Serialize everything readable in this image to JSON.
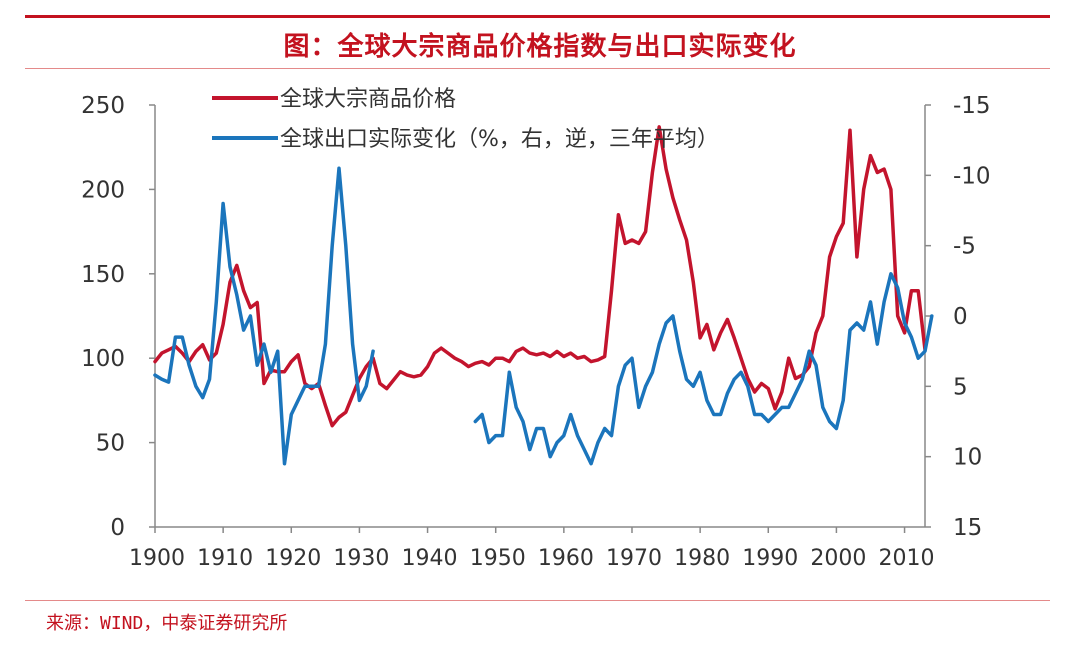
{
  "header": {
    "title": "图：全球大宗商品价格指数与出口实际变化"
  },
  "footer": {
    "source": "来源：WIND，中泰证券研究所"
  },
  "chart_data": {
    "type": "line",
    "x_ticks": [
      1900,
      1910,
      1920,
      1930,
      1940,
      1950,
      1960,
      1970,
      1980,
      1990,
      2000,
      2010
    ],
    "xlim": [
      1900,
      2013
    ],
    "left_axis": {
      "ylim": [
        0,
        250
      ],
      "ticks": [
        0,
        50,
        100,
        150,
        200,
        250
      ]
    },
    "right_axis": {
      "ylim": [
        15,
        -15
      ],
      "ticks": [
        15,
        10,
        5,
        0,
        -5,
        -10,
        -15
      ],
      "reversed": true
    },
    "legend": {
      "placement": "top-left",
      "items": [
        "全球大宗商品价格",
        "全球出口实际变化（%，右，逆，三年平均）"
      ]
    },
    "colors": {
      "commodity": "#c3142d",
      "exports": "#1b75bc",
      "axis": "#888888",
      "rule": "#c3121f"
    },
    "series": [
      {
        "name": "全球大宗商品价格",
        "axis": "left",
        "color": "#c3142d",
        "points": [
          [
            1900,
            98
          ],
          [
            1901,
            103
          ],
          [
            1902,
            105
          ],
          [
            1903,
            107
          ],
          [
            1904,
            103
          ],
          [
            1905,
            98
          ],
          [
            1906,
            104
          ],
          [
            1907,
            108
          ],
          [
            1908,
            99
          ],
          [
            1909,
            103
          ],
          [
            1910,
            120
          ],
          [
            1911,
            145
          ],
          [
            1912,
            155
          ],
          [
            1913,
            140
          ],
          [
            1914,
            130
          ],
          [
            1915,
            133
          ],
          [
            1916,
            85
          ],
          [
            1917,
            93
          ],
          [
            1918,
            92
          ],
          [
            1919,
            92
          ],
          [
            1920,
            98
          ],
          [
            1921,
            102
          ],
          [
            1922,
            85
          ],
          [
            1923,
            82
          ],
          [
            1924,
            85
          ],
          [
            1925,
            72
          ],
          [
            1926,
            60
          ],
          [
            1927,
            65
          ],
          [
            1928,
            68
          ],
          [
            1929,
            78
          ],
          [
            1930,
            88
          ],
          [
            1931,
            95
          ],
          [
            1932,
            100
          ],
          [
            1933,
            85
          ],
          [
            1934,
            82
          ],
          [
            1935,
            87
          ],
          [
            1936,
            92
          ],
          [
            1937,
            90
          ],
          [
            1938,
            89
          ],
          [
            1939,
            90
          ],
          [
            1940,
            95
          ],
          [
            1941,
            103
          ],
          [
            1942,
            106
          ],
          [
            1943,
            103
          ],
          [
            1944,
            100
          ],
          [
            1945,
            98
          ],
          [
            1946,
            95
          ],
          [
            1947,
            97
          ],
          [
            1948,
            98
          ],
          [
            1949,
            96
          ],
          [
            1950,
            100
          ],
          [
            1951,
            100
          ],
          [
            1952,
            98
          ],
          [
            1953,
            104
          ],
          [
            1954,
            106
          ],
          [
            1955,
            103
          ],
          [
            1956,
            102
          ],
          [
            1957,
            103
          ],
          [
            1958,
            101
          ],
          [
            1959,
            104
          ],
          [
            1960,
            101
          ],
          [
            1961,
            103
          ],
          [
            1962,
            100
          ],
          [
            1963,
            101
          ],
          [
            1964,
            98
          ],
          [
            1965,
            99
          ],
          [
            1966,
            101
          ],
          [
            1967,
            140
          ],
          [
            1968,
            185
          ],
          [
            1969,
            168
          ],
          [
            1970,
            170
          ],
          [
            1971,
            168
          ],
          [
            1972,
            175
          ],
          [
            1973,
            210
          ],
          [
            1974,
            237
          ],
          [
            1975,
            212
          ],
          [
            1976,
            195
          ],
          [
            1977,
            182
          ],
          [
            1978,
            170
          ],
          [
            1979,
            145
          ],
          [
            1980,
            112
          ],
          [
            1981,
            120
          ],
          [
            1982,
            105
          ],
          [
            1983,
            115
          ],
          [
            1984,
            123
          ],
          [
            1985,
            112
          ],
          [
            1986,
            100
          ],
          [
            1987,
            88
          ],
          [
            1988,
            80
          ],
          [
            1989,
            85
          ],
          [
            1990,
            82
          ],
          [
            1991,
            70
          ],
          [
            1992,
            80
          ],
          [
            1993,
            100
          ],
          [
            1994,
            88
          ],
          [
            1995,
            90
          ],
          [
            1996,
            95
          ],
          [
            1997,
            115
          ],
          [
            1998,
            125
          ],
          [
            1999,
            160
          ],
          [
            2000,
            172
          ],
          [
            2001,
            180
          ],
          [
            2002,
            235
          ],
          [
            2003,
            160
          ],
          [
            2004,
            200
          ],
          [
            2005,
            220
          ],
          [
            2006,
            210
          ],
          [
            2007,
            212
          ],
          [
            2008,
            200
          ],
          [
            2009,
            125
          ],
          [
            2010,
            115
          ],
          [
            2011,
            140
          ],
          [
            2012,
            140
          ],
          [
            2013,
            105
          ]
        ]
      },
      {
        "name": "全球出口实际变化（%，右，逆，三年平均）",
        "axis": "right",
        "color": "#1b75bc",
        "segments": [
          [
            [
              1900,
              4.2
            ],
            [
              1901,
              4.5
            ],
            [
              1902,
              4.7
            ],
            [
              1903,
              1.5
            ],
            [
              1904,
              1.5
            ],
            [
              1905,
              3.5
            ],
            [
              1906,
              5.0
            ],
            [
              1907,
              5.8
            ],
            [
              1908,
              4.5
            ],
            [
              1909,
              -1.0
            ],
            [
              1910,
              -8.0
            ],
            [
              1911,
              -3.5
            ],
            [
              1912,
              -1.5
            ],
            [
              1913,
              1.0
            ],
            [
              1914,
              0.0
            ],
            [
              1915,
              3.5
            ],
            [
              1916,
              2.0
            ],
            [
              1917,
              4.0
            ],
            [
              1918,
              2.5
            ],
            [
              1919,
              10.5
            ],
            [
              1920,
              7.0
            ],
            [
              1921,
              6.0
            ],
            [
              1922,
              5.0
            ],
            [
              1923,
              5.0
            ],
            [
              1924,
              5.0
            ],
            [
              1925,
              2.0
            ],
            [
              1926,
              -5.0
            ],
            [
              1927,
              -10.5
            ],
            [
              1928,
              -5.0
            ],
            [
              1929,
              2.0
            ],
            [
              1930,
              6.0
            ],
            [
              1931,
              5.0
            ],
            [
              1932,
              2.5
            ]
          ],
          [
            [
              1947,
              7.5
            ],
            [
              1948,
              7.0
            ],
            [
              1949,
              9.0
            ],
            [
              1950,
              8.5
            ],
            [
              1951,
              8.5
            ],
            [
              1952,
              4.0
            ],
            [
              1953,
              6.5
            ],
            [
              1954,
              7.5
            ],
            [
              1955,
              9.5
            ],
            [
              1956,
              8.0
            ],
            [
              1957,
              8.0
            ],
            [
              1958,
              10.0
            ],
            [
              1959,
              9.0
            ],
            [
              1960,
              8.5
            ],
            [
              1961,
              7.0
            ],
            [
              1962,
              8.5
            ],
            [
              1963,
              9.5
            ],
            [
              1964,
              10.5
            ],
            [
              1965,
              9.0
            ],
            [
              1966,
              8.0
            ],
            [
              1967,
              8.5
            ],
            [
              1968,
              5.0
            ],
            [
              1969,
              3.5
            ],
            [
              1970,
              3.0
            ],
            [
              1971,
              6.5
            ],
            [
              1972,
              5.0
            ],
            [
              1973,
              4.0
            ],
            [
              1974,
              2.0
            ],
            [
              1975,
              0.5
            ],
            [
              1976,
              0.0
            ],
            [
              1977,
              2.5
            ],
            [
              1978,
              4.5
            ],
            [
              1979,
              5.0
            ],
            [
              1980,
              4.0
            ],
            [
              1981,
              6.0
            ],
            [
              1982,
              7.0
            ],
            [
              1983,
              7.0
            ],
            [
              1984,
              5.5
            ],
            [
              1985,
              4.5
            ],
            [
              1986,
              4.0
            ],
            [
              1987,
              5.0
            ],
            [
              1988,
              7.0
            ],
            [
              1989,
              7.0
            ],
            [
              1990,
              7.5
            ],
            [
              1991,
              7.0
            ],
            [
              1992,
              6.5
            ],
            [
              1993,
              6.5
            ],
            [
              1994,
              5.5
            ],
            [
              1995,
              4.5
            ],
            [
              1996,
              2.5
            ],
            [
              1997,
              3.5
            ],
            [
              1998,
              6.5
            ],
            [
              1999,
              7.5
            ],
            [
              2000,
              8.0
            ],
            [
              2001,
              6.0
            ],
            [
              2002,
              1.0
            ],
            [
              2003,
              0.5
            ],
            [
              2004,
              1.0
            ],
            [
              2005,
              -1.0
            ],
            [
              2006,
              2.0
            ],
            [
              2007,
              -1.0
            ],
            [
              2008,
              -3.0
            ],
            [
              2009,
              -2.0
            ],
            [
              2010,
              0.5
            ],
            [
              2011,
              1.5
            ],
            [
              2012,
              3.0
            ],
            [
              2013,
              2.5
            ],
            [
              2014,
              0.0
            ]
          ]
        ]
      }
    ]
  }
}
